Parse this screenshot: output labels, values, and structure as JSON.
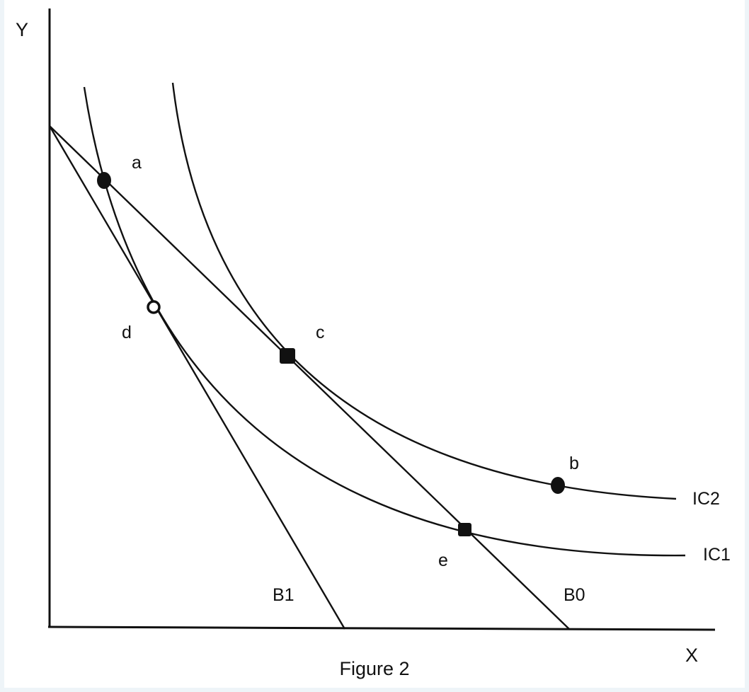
{
  "figure": {
    "caption": "Figure 2",
    "axes": {
      "y_label": "Y",
      "x_label": "X"
    },
    "curves": {
      "ic1_label": "IC1",
      "ic2_label": "IC2",
      "b0_label": "B0",
      "b1_label": "B1"
    },
    "points": {
      "a": "a",
      "b": "b",
      "c": "c",
      "d": "d",
      "e": "e"
    },
    "colors": {
      "ink": "#111111",
      "background": "#ffffff",
      "frame": "#eef4f8"
    }
  }
}
